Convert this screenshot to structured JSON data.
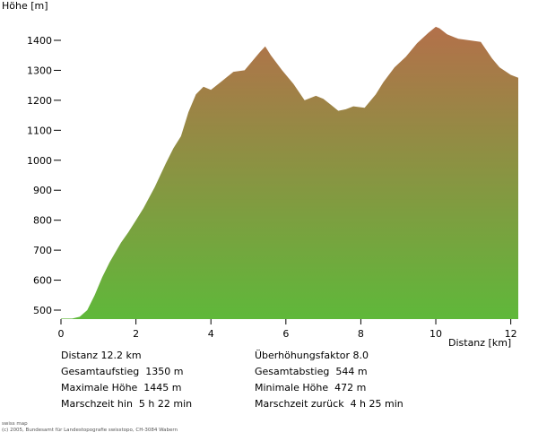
{
  "chart_data": {
    "type": "area",
    "title": "",
    "xlabel": "Distanz [km]",
    "ylabel": "Höhe [m]",
    "xlim": [
      0,
      12.2
    ],
    "ylim": [
      472,
      1445
    ],
    "x_ticks": [
      0,
      2,
      4,
      6,
      8,
      10,
      12
    ],
    "y_ticks": [
      500,
      600,
      700,
      800,
      900,
      1000,
      1100,
      1200,
      1300,
      1400
    ],
    "grid": false,
    "fill_gradient": {
      "top": "#b3704a",
      "bottom": "#5fb83a"
    },
    "series": [
      {
        "x": [
          0,
          0.3,
          0.5,
          0.7,
          0.9,
          1.1,
          1.3,
          1.6,
          1.8,
          2.0,
          2.2,
          2.5,
          2.8,
          3.0,
          3.2,
          3.4,
          3.6,
          3.8,
          4.0,
          4.3,
          4.6,
          4.9,
          5.1,
          5.3,
          5.45,
          5.6,
          5.9,
          6.2,
          6.5,
          6.8,
          7.0,
          7.2,
          7.4,
          7.6,
          7.8,
          8.1,
          8.4,
          8.6,
          8.9,
          9.2,
          9.5,
          9.8,
          10.0,
          10.1,
          10.3,
          10.6,
          10.9,
          11.2,
          11.5,
          11.7,
          12.0,
          12.2
        ],
        "y": [
          472,
          472,
          478,
          500,
          550,
          610,
          660,
          725,
          760,
          800,
          840,
          910,
          990,
          1040,
          1080,
          1160,
          1220,
          1245,
          1235,
          1265,
          1295,
          1300,
          1330,
          1360,
          1380,
          1350,
          1300,
          1255,
          1200,
          1215,
          1205,
          1185,
          1165,
          1170,
          1180,
          1175,
          1220,
          1260,
          1310,
          1345,
          1390,
          1425,
          1445,
          1440,
          1420,
          1405,
          1400,
          1395,
          1340,
          1310,
          1285,
          1275
        ]
      }
    ]
  },
  "header": {
    "y_axis_title": "Höhe [m]"
  },
  "x_axis": {
    "title": "Distanz [km]",
    "tick_labels": [
      "0",
      "2",
      "4",
      "6",
      "8",
      "10",
      "12"
    ]
  },
  "y_axis": {
    "tick_labels": [
      "500",
      "600",
      "700",
      "800",
      "900",
      "1000",
      "1100",
      "1200",
      "1300",
      "1400"
    ]
  },
  "stats": {
    "left": [
      "Distanz 12.2 km",
      "Gesamtaufstieg  1350 m",
      "Maximale Höhe  1445 m",
      "Marschzeit hin  5 h 22 min"
    ],
    "right": [
      "Überhöhungsfaktor 8.0",
      "Gesamtabstieg  544 m",
      "Minimale Höhe  472 m",
      "Marschzeit zurück  4 h 25 min"
    ]
  },
  "credit": {
    "line1": "swiss map",
    "line2": "(c) 2005, Bundesamt für Landestopografie swisstopo, CH-3084 Wabern"
  }
}
